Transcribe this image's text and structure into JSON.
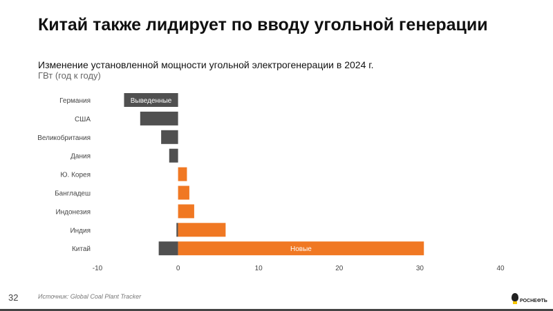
{
  "slide": {
    "title": "Китай также лидирует по вводу угольной генерации",
    "page_number": "32",
    "source": "Источник: Global Coal Plant Tracker",
    "logo_text": "РОСНЕФТЬ"
  },
  "chart_data": {
    "type": "bar",
    "orientation": "horizontal",
    "stacked": true,
    "title": "Изменение установленной мощности угольной электрогенерации в 2024 г.",
    "subtitle": "ГВт (год к году)",
    "categories": [
      "Германия",
      "США",
      "Великобритания",
      "Дания",
      "Ю. Корея",
      "Бангладеш",
      "Индонезия",
      "Индия",
      "Китай"
    ],
    "series": [
      {
        "name": "Выведенные",
        "color": "#505050",
        "values": [
          -6.7,
          -4.7,
          -2.1,
          -1.1,
          0,
          0,
          0,
          -0.2,
          -2.4
        ]
      },
      {
        "name": "Новые",
        "color": "#f07823",
        "values": [
          0,
          0,
          0,
          0,
          1.1,
          1.4,
          2.0,
          5.9,
          30.5
        ]
      }
    ],
    "xlim": [
      -10,
      40
    ],
    "xticks": [
      "-10",
      "0",
      "10",
      "20",
      "30",
      "40"
    ],
    "grid": false,
    "legend": "inline labels"
  }
}
